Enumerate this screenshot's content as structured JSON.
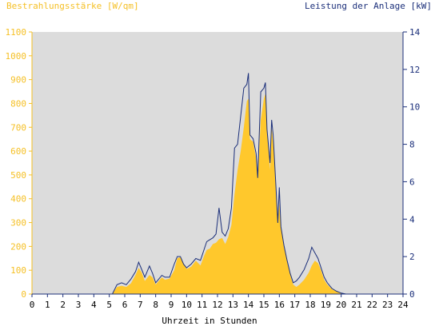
{
  "chart_data": {
    "type": "area",
    "title_left": "Bestrahlungsstärke [W/qm]",
    "title_right": "Leistung der Anlage [kW]",
    "xlabel": "Uhrzeit in Stunden",
    "x_ticks": [
      "0",
      "1",
      "2",
      "3",
      "4",
      "5",
      "6",
      "7",
      "8",
      "9",
      "10",
      "11",
      "12",
      "13",
      "14",
      "15",
      "16",
      "17",
      "18",
      "19",
      "20",
      "21",
      "22",
      "23",
      "24"
    ],
    "xlim": [
      0,
      24
    ],
    "y_left": {
      "ylim": [
        0,
        1100
      ],
      "ticks": [
        "0",
        "100",
        "200",
        "300",
        "400",
        "500",
        "600",
        "700",
        "800",
        "900",
        "1000",
        "1100"
      ]
    },
    "y_right": {
      "ylim": [
        0,
        14
      ],
      "ticks": [
        "0",
        "2",
        "4",
        "6",
        "8",
        "10",
        "12",
        "14"
      ]
    },
    "series": [
      {
        "axis": "left",
        "kind": "area",
        "x": [
          0,
          5.2,
          5.5,
          5.8,
          6.1,
          6.4,
          6.7,
          6.9,
          7.1,
          7.3,
          7.6,
          7.8,
          8.0,
          8.2,
          8.4,
          8.6,
          8.9,
          9.2,
          9.4,
          9.6,
          9.8,
          10.0,
          10.3,
          10.6,
          10.9,
          11.1,
          11.3,
          11.5,
          11.7,
          11.9,
          12.1,
          12.3,
          12.5,
          12.7,
          12.9,
          13.1,
          13.3,
          13.5,
          13.7,
          13.9,
          14.0,
          14.1,
          14.3,
          14.5,
          14.6,
          14.8,
          15.0,
          15.1,
          15.2,
          15.4,
          15.5,
          15.6,
          15.8,
          15.9,
          16.0,
          16.1,
          16.3,
          16.5,
          16.7,
          16.9,
          17.1,
          17.3,
          17.6,
          17.9,
          18.1,
          18.3,
          18.5,
          18.7,
          18.9,
          19.1,
          19.4,
          19.7,
          20.0,
          20.3,
          20.5,
          24
        ],
        "y": [
          0,
          0,
          30,
          35,
          30,
          45,
          80,
          110,
          90,
          55,
          80,
          70,
          40,
          55,
          70,
          60,
          65,
          100,
          150,
          155,
          130,
          105,
          115,
          140,
          120,
          155,
          185,
          190,
          210,
          215,
          230,
          235,
          210,
          240,
          290,
          420,
          520,
          600,
          700,
          810,
          820,
          650,
          640,
          570,
          480,
          730,
          820,
          840,
          700,
          520,
          700,
          640,
          420,
          310,
          380,
          290,
          200,
          140,
          80,
          40,
          30,
          40,
          60,
          90,
          120,
          140,
          130,
          100,
          60,
          40,
          20,
          10,
          5,
          0,
          0,
          0
        ]
      },
      {
        "axis": "right",
        "kind": "line",
        "x": [
          0,
          5.2,
          5.5,
          5.8,
          6.1,
          6.4,
          6.7,
          6.9,
          7.1,
          7.3,
          7.6,
          7.8,
          8.0,
          8.2,
          8.4,
          8.6,
          8.9,
          9.2,
          9.4,
          9.6,
          9.8,
          10.0,
          10.3,
          10.6,
          10.9,
          11.1,
          11.3,
          11.5,
          11.7,
          11.9,
          12.1,
          12.3,
          12.5,
          12.7,
          12.9,
          13.1,
          13.3,
          13.5,
          13.7,
          13.9,
          14.0,
          14.1,
          14.3,
          14.5,
          14.6,
          14.8,
          15.0,
          15.1,
          15.2,
          15.4,
          15.5,
          15.6,
          15.8,
          15.9,
          16.0,
          16.1,
          16.3,
          16.5,
          16.7,
          16.9,
          17.1,
          17.3,
          17.6,
          17.9,
          18.1,
          18.3,
          18.5,
          18.7,
          18.9,
          19.1,
          19.4,
          19.7,
          20.0,
          20.3,
          20.5,
          24
        ],
        "y": [
          0,
          0,
          0.5,
          0.6,
          0.5,
          0.8,
          1.2,
          1.7,
          1.3,
          0.9,
          1.5,
          1.1,
          0.6,
          0.8,
          1.0,
          0.9,
          0.9,
          1.6,
          2.0,
          2.0,
          1.6,
          1.4,
          1.6,
          1.9,
          1.8,
          2.3,
          2.8,
          2.9,
          3.0,
          3.2,
          4.6,
          3.3,
          3.1,
          3.5,
          4.6,
          7.8,
          8.0,
          9.5,
          11.0,
          11.2,
          11.8,
          8.5,
          8.3,
          7.5,
          6.2,
          10.8,
          11.0,
          11.3,
          8.8,
          7.0,
          9.3,
          8.5,
          5.4,
          3.8,
          5.7,
          3.6,
          2.6,
          1.8,
          1.1,
          0.6,
          0.7,
          0.9,
          1.3,
          1.9,
          2.5,
          2.2,
          1.9,
          1.4,
          0.9,
          0.6,
          0.3,
          0.15,
          0.05,
          0,
          0,
          0
        ]
      }
    ],
    "grid": false,
    "colors": {
      "background": "#ffffff",
      "plot_area": "#dcdcdc",
      "irradiance_fill": "#ffc82c",
      "power_line": "#1b2f7a",
      "left_axis": "#f5c026",
      "right_axis": "#1b2f7a"
    }
  }
}
